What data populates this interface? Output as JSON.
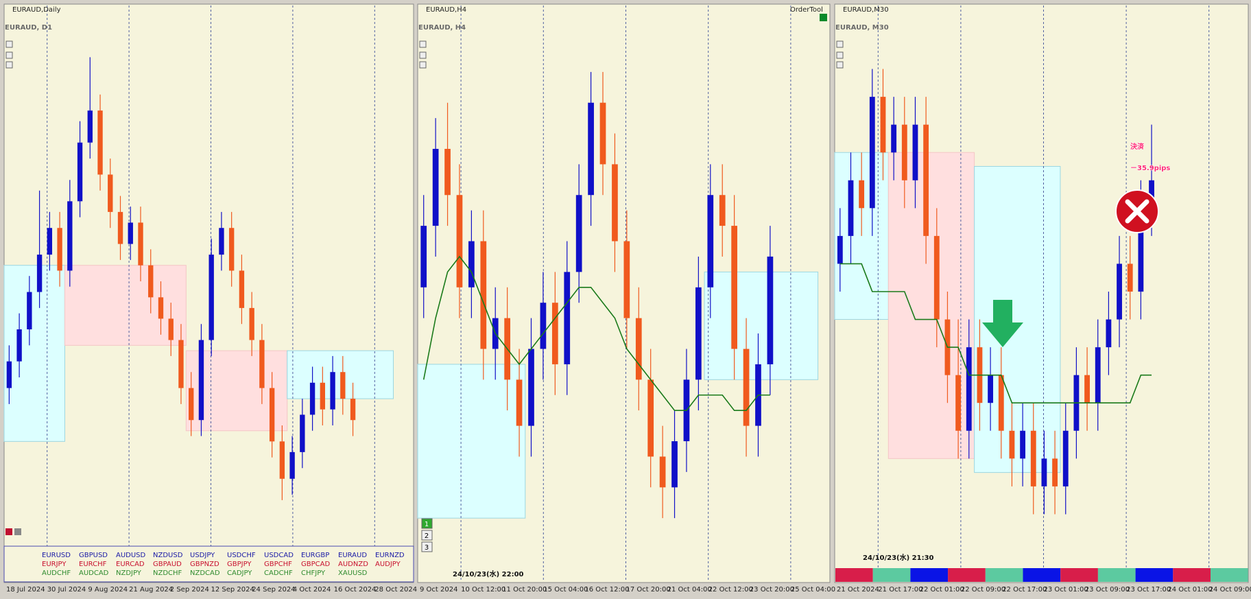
{
  "chart_data": [
    {
      "type": "candlestick",
      "header": "EURAUD,Daily",
      "title": "EURAUD, D1",
      "x_labels": [
        "18 Jul 2024",
        "30 Jul 2024",
        "9 Aug 2024",
        "21 Aug 2024",
        "2 Sep 2024",
        "12 Sep 2024",
        "24 Sep 2024",
        "4 Oct 2024",
        "16 Oct 2024",
        "28 Oct 2024"
      ],
      "xlim": [
        -0.5,
        40
      ],
      "ylim": [
        1.59,
        1.68
      ],
      "up_color": "#1010c8",
      "down_color": "#f05a1e",
      "open": [
        1.615,
        1.62,
        1.626,
        1.633,
        1.64,
        1.645,
        1.637,
        1.65,
        1.661,
        1.667,
        1.655,
        1.648,
        1.642,
        1.646,
        1.638,
        1.632,
        1.628,
        1.624,
        1.615,
        1.609,
        1.624,
        1.64,
        1.645,
        1.637,
        1.63,
        1.624,
        1.615,
        1.605,
        1.598,
        1.603,
        1.61,
        1.616,
        1.611,
        1.618,
        1.613
      ],
      "high": [
        1.623,
        1.629,
        1.636,
        1.652,
        1.648,
        1.648,
        1.654,
        1.665,
        1.677,
        1.67,
        1.658,
        1.651,
        1.649,
        1.649,
        1.641,
        1.635,
        1.631,
        1.627,
        1.618,
        1.627,
        1.643,
        1.648,
        1.648,
        1.64,
        1.633,
        1.627,
        1.618,
        1.608,
        1.606,
        1.613,
        1.619,
        1.619,
        1.621,
        1.621,
        1.616
      ],
      "low": [
        1.612,
        1.617,
        1.623,
        1.63,
        1.637,
        1.634,
        1.634,
        1.647,
        1.658,
        1.652,
        1.645,
        1.639,
        1.639,
        1.635,
        1.629,
        1.625,
        1.621,
        1.612,
        1.606,
        1.606,
        1.621,
        1.637,
        1.634,
        1.627,
        1.621,
        1.612,
        1.602,
        1.594,
        1.595,
        1.6,
        1.607,
        1.608,
        1.608,
        1.61,
        1.606
      ],
      "close": [
        1.62,
        1.626,
        1.633,
        1.64,
        1.645,
        1.637,
        1.65,
        1.661,
        1.667,
        1.655,
        1.648,
        1.642,
        1.646,
        1.638,
        1.632,
        1.628,
        1.624,
        1.615,
        1.609,
        1.624,
        1.64,
        1.645,
        1.637,
        1.63,
        1.624,
        1.615,
        1.605,
        1.598,
        1.603,
        1.61,
        1.616,
        1.611,
        1.618,
        1.613,
        1.609
      ],
      "zones": [
        {
          "x": [
            -0.5,
            5.5
          ],
          "y": [
            1.605,
            1.638
          ],
          "color": "#dcffff"
        },
        {
          "x": [
            5.5,
            17.5
          ],
          "y": [
            1.623,
            1.638
          ],
          "color": "#ffdfdf"
        },
        {
          "x": [
            17.5,
            27.5
          ],
          "y": [
            1.607,
            1.622
          ],
          "color": "#ffdfdf"
        },
        {
          "x": [
            27.5,
            38
          ],
          "y": [
            1.613,
            1.622
          ],
          "color": "#dcffff"
        }
      ]
    },
    {
      "type": "candlestick",
      "header": "EURAUD,H4",
      "title": "EURAUD, H4",
      "x_labels": [
        "9 Oct 2024",
        "10 Oct 12:00",
        "11 Oct 20:00",
        "15 Oct 04:00",
        "16 Oct 12:00",
        "17 Oct 20:00",
        "21 Oct 04:00",
        "22 Oct 12:00",
        "23 Oct 20:00",
        "25 Oct 04:00"
      ],
      "xlim": [
        -0.5,
        34
      ],
      "ylim": [
        1.607,
        1.64
      ],
      "up_color": "#1010c8",
      "down_color": "#f05a1e",
      "ma_color": "#1a7a1a",
      "open": [
        1.624,
        1.628,
        1.633,
        1.63,
        1.624,
        1.627,
        1.62,
        1.622,
        1.618,
        1.615,
        1.62,
        1.623,
        1.619,
        1.625,
        1.63,
        1.636,
        1.632,
        1.627,
        1.622,
        1.618,
        1.613,
        1.611,
        1.614,
        1.618,
        1.624,
        1.63,
        1.628,
        1.62,
        1.615,
        1.619
      ],
      "high": [
        1.63,
        1.635,
        1.636,
        1.632,
        1.629,
        1.629,
        1.624,
        1.624,
        1.62,
        1.622,
        1.625,
        1.625,
        1.627,
        1.632,
        1.638,
        1.638,
        1.634,
        1.629,
        1.624,
        1.62,
        1.615,
        1.616,
        1.62,
        1.626,
        1.632,
        1.632,
        1.63,
        1.622,
        1.621,
        1.628
      ],
      "low": [
        1.622,
        1.626,
        1.628,
        1.622,
        1.622,
        1.618,
        1.618,
        1.616,
        1.613,
        1.613,
        1.618,
        1.617,
        1.617,
        1.623,
        1.628,
        1.63,
        1.625,
        1.62,
        1.616,
        1.611,
        1.609,
        1.609,
        1.612,
        1.616,
        1.622,
        1.626,
        1.618,
        1.613,
        1.613,
        1.617
      ],
      "close": [
        1.628,
        1.633,
        1.63,
        1.624,
        1.627,
        1.62,
        1.622,
        1.618,
        1.615,
        1.62,
        1.623,
        1.619,
        1.625,
        1.63,
        1.636,
        1.632,
        1.627,
        1.622,
        1.618,
        1.613,
        1.611,
        1.614,
        1.618,
        1.624,
        1.63,
        1.628,
        1.62,
        1.615,
        1.619,
        1.626
      ],
      "ma": [
        1.618,
        1.622,
        1.625,
        1.626,
        1.625,
        1.623,
        1.621,
        1.62,
        1.619,
        1.62,
        1.621,
        1.622,
        1.623,
        1.624,
        1.624,
        1.623,
        1.622,
        1.62,
        1.619,
        1.618,
        1.617,
        1.616,
        1.616,
        1.617,
        1.617,
        1.617,
        1.616,
        1.616,
        1.617,
        1.617
      ],
      "zones": [
        {
          "x": [
            -0.5,
            8.5
          ],
          "y": [
            1.609,
            1.619
          ],
          "color": "#dcffff"
        },
        {
          "x": [
            23.5,
            33
          ],
          "y": [
            1.618,
            1.625
          ],
          "color": "#dcffff"
        }
      ]
    },
    {
      "type": "candlestick",
      "header": "EURAUD,M30",
      "title": "EURAUD, M30",
      "x_labels": [
        "21 Oct 2024",
        "21 Oct 17:00",
        "22 Oct 01:00",
        "22 Oct 09:00",
        "22 Oct 17:00",
        "23 Oct 01:00",
        "23 Oct 09:00",
        "23 Oct 17:00",
        "24 Oct 01:00",
        "24 Oct 09:00"
      ],
      "xlim": [
        -0.5,
        38
      ],
      "ylim": [
        1.614,
        1.632
      ],
      "up_color": "#1010c8",
      "down_color": "#f05a1e",
      "ma_color": "#1a7a1a",
      "open": [
        1.624,
        1.625,
        1.627,
        1.626,
        1.63,
        1.628,
        1.629,
        1.627,
        1.629,
        1.625,
        1.622,
        1.62,
        1.618,
        1.621,
        1.619,
        1.62,
        1.618,
        1.617,
        1.618,
        1.616,
        1.617,
        1.616,
        1.618,
        1.62,
        1.619,
        1.621,
        1.622,
        1.624,
        1.623,
        1.626
      ],
      "high": [
        1.626,
        1.628,
        1.628,
        1.631,
        1.631,
        1.63,
        1.63,
        1.63,
        1.63,
        1.626,
        1.623,
        1.622,
        1.622,
        1.622,
        1.621,
        1.621,
        1.619,
        1.619,
        1.619,
        1.618,
        1.618,
        1.619,
        1.621,
        1.621,
        1.622,
        1.623,
        1.625,
        1.625,
        1.627,
        1.629
      ],
      "low": [
        1.623,
        1.624,
        1.625,
        1.625,
        1.627,
        1.627,
        1.626,
        1.626,
        1.624,
        1.621,
        1.619,
        1.617,
        1.617,
        1.618,
        1.618,
        1.617,
        1.616,
        1.616,
        1.615,
        1.615,
        1.615,
        1.615,
        1.617,
        1.618,
        1.618,
        1.62,
        1.621,
        1.622,
        1.622,
        1.625
      ],
      "close": [
        1.625,
        1.627,
        1.626,
        1.63,
        1.628,
        1.629,
        1.627,
        1.629,
        1.625,
        1.622,
        1.62,
        1.618,
        1.621,
        1.619,
        1.62,
        1.618,
        1.617,
        1.618,
        1.616,
        1.617,
        1.616,
        1.618,
        1.62,
        1.619,
        1.621,
        1.622,
        1.624,
        1.623,
        1.626,
        1.627
      ],
      "ma": [
        1.624,
        1.624,
        1.624,
        1.623,
        1.623,
        1.623,
        1.623,
        1.622,
        1.622,
        1.622,
        1.621,
        1.621,
        1.62,
        1.62,
        1.62,
        1.62,
        1.619,
        1.619,
        1.619,
        1.619,
        1.619,
        1.619,
        1.619,
        1.619,
        1.619,
        1.619,
        1.619,
        1.619,
        1.62,
        1.62
      ],
      "zones": [
        {
          "x": [
            -0.5,
            4.5
          ],
          "y": [
            1.622,
            1.628
          ],
          "color": "#dcffff"
        },
        {
          "x": [
            4.5,
            12.5
          ],
          "y": [
            1.617,
            1.628
          ],
          "color": "#ffdfdf"
        },
        {
          "x": [
            12.5,
            20.5
          ],
          "y": [
            1.6165,
            1.6275
          ],
          "color": "#dcffff"
        }
      ]
    }
  ],
  "symbols": [
    {
      "color": "#1a1aa6",
      "items": [
        "EURUSD",
        "GBPUSD",
        "AUDUSD",
        "NZDUSD",
        "USDJPY",
        "USDCHF",
        "USDCAD",
        "EURGBP",
        "EURAUD",
        "EURNZD"
      ]
    },
    {
      "color": "#c8102e",
      "items": [
        "EURJPY",
        "EURCHF",
        "EURCAD",
        "GBPAUD",
        "GBPNZD",
        "GBPJPY",
        "GBPCHF",
        "GBPCAD",
        "AUDNZD",
        "AUDJPY"
      ]
    },
    {
      "color": "#2e8b2e",
      "items": [
        "AUDCHF",
        "AUDCAD",
        "NZDJPY",
        "NZDCHF",
        "NZDCAD",
        "CADJPY",
        "CADCHF",
        "CHFJPY",
        "XAUUSD"
      ]
    }
  ],
  "order_tool": "OrderTool",
  "h4_buttons": [
    "1",
    "2",
    "3"
  ],
  "h4_time": "24/10/23(水) 22:00",
  "m30_time": "24/10/23(水) 21:30",
  "annotation": {
    "line1": "決済",
    "line2": "－35.9pips"
  }
}
